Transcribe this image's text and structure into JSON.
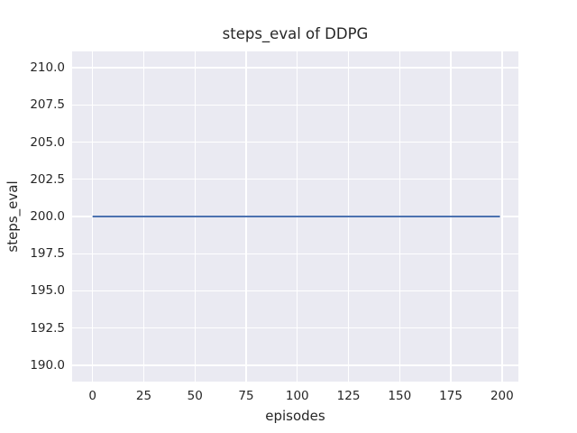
{
  "chart_data": {
    "type": "line",
    "title": "steps_eval of DDPG",
    "xlabel": "episodes",
    "ylabel": "steps_eval",
    "xlim": [
      -10,
      208
    ],
    "ylim": [
      188.9,
      211.1
    ],
    "xticks": [
      0,
      25,
      50,
      75,
      100,
      125,
      150,
      175,
      200
    ],
    "xtick_labels": [
      "0",
      "25",
      "50",
      "75",
      "100",
      "125",
      "150",
      "175",
      "200"
    ],
    "yticks": [
      190.0,
      192.5,
      195.0,
      197.5,
      200.0,
      202.5,
      205.0,
      207.5,
      210.0
    ],
    "ytick_labels": [
      "190.0",
      "192.5",
      "195.0",
      "197.5",
      "200.0",
      "202.5",
      "205.0",
      "207.5",
      "210.0"
    ],
    "grid": true,
    "legend": false,
    "plot_background_color": "#EAEAF2",
    "grid_color": "#FFFFFF",
    "text_color": "#262626",
    "series": [
      {
        "name": "DDPG",
        "color": "#4C72B0",
        "line_width": 2,
        "x": [
          0,
          199
        ],
        "y": [
          200,
          200
        ]
      }
    ]
  }
}
